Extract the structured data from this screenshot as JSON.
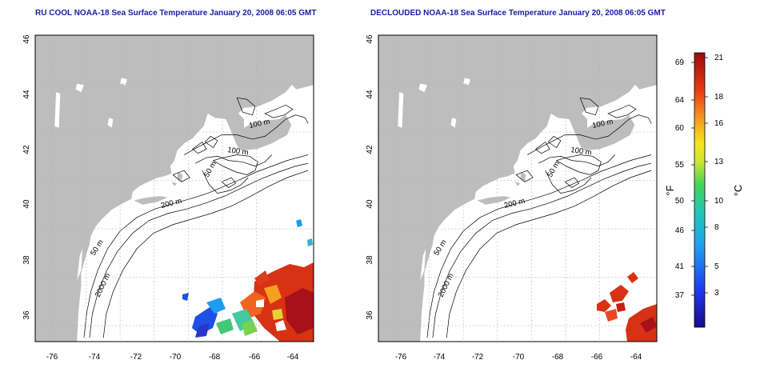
{
  "maps": [
    {
      "id": "left",
      "title": "RU COOL NOAA-18 Sea Surface Temperature January 20, 2008 06:05 GMT"
    },
    {
      "id": "right",
      "title": "DECLOUDED NOAA-18 Sea Surface Temperature January 20, 2008 06:05 GMT"
    }
  ],
  "axes": {
    "lon_ticks": [
      "-76",
      "-74",
      "-72",
      "-70",
      "-68",
      "-66",
      "-64"
    ],
    "lat_ticks": [
      "36",
      "38",
      "40",
      "42",
      "44",
      "46"
    ],
    "lon_range": [
      -77,
      -63
    ],
    "lat_range": [
      35,
      46
    ]
  },
  "contour_labels": {
    "left": [
      "100 m",
      "100 m",
      "50 m",
      "200 m",
      "50 m",
      "2000 m"
    ],
    "right": [
      "100 m",
      "100 m",
      "50 m",
      "200 m",
      "50 m",
      "2000 m"
    ]
  },
  "colorbar": {
    "fahrenheit_label": "°F",
    "celsius_label": "°C",
    "fahrenheit_ticks": [
      "69",
      "64",
      "60",
      "55",
      "50",
      "46",
      "41",
      "37"
    ],
    "celsius_ticks": [
      "21",
      "18",
      "16",
      "13",
      "10",
      "8",
      "5",
      "3"
    ],
    "range_c": [
      0,
      21
    ]
  },
  "colors": {
    "land": "#bdbdbd",
    "title": "#1a1aa8",
    "grid": "#b0b0b0",
    "contour": "#000000"
  }
}
